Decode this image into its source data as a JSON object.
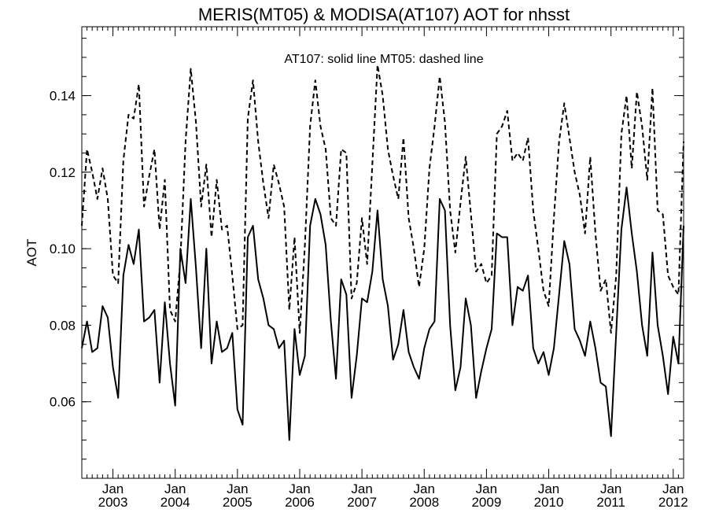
{
  "chart_data": {
    "type": "line",
    "title": "MERIS(MT05) & MODISA(AT107)  AOT for nhsst",
    "annotation": "AT107: solid line   MT05: dashed line",
    "xlabel": "",
    "ylabel": "AOT",
    "x_time_range": [
      "2002-07",
      "2012-03"
    ],
    "ylim": [
      0.04,
      0.158
    ],
    "grid": false,
    "legend": "none",
    "y_ticks": [
      0.06,
      0.08,
      0.1,
      0.12,
      0.14
    ],
    "y_tick_labels": [
      "0.06",
      "0.08",
      "0.10",
      "0.12",
      "0.14"
    ],
    "x_ticks": [
      {
        "month": "Jan",
        "year": "2003",
        "date": "2003-01"
      },
      {
        "month": "Jan",
        "year": "2004",
        "date": "2004-01"
      },
      {
        "month": "Jan",
        "year": "2005",
        "date": "2005-01"
      },
      {
        "month": "Jan",
        "year": "2006",
        "date": "2006-01"
      },
      {
        "month": "Jan",
        "year": "2007",
        "date": "2007-01"
      },
      {
        "month": "Jan",
        "year": "2008",
        "date": "2008-01"
      },
      {
        "month": "Jan",
        "year": "2009",
        "date": "2009-01"
      },
      {
        "month": "Jan",
        "year": "2010",
        "date": "2010-01"
      },
      {
        "month": "Jan",
        "year": "2011",
        "date": "2011-01"
      },
      {
        "month": "Jan",
        "year": "2012",
        "date": "2012-01"
      }
    ],
    "x": [
      "2002-07",
      "2002-08",
      "2002-09",
      "2002-10",
      "2002-11",
      "2002-12",
      "2003-01",
      "2003-02",
      "2003-03",
      "2003-04",
      "2003-05",
      "2003-06",
      "2003-07",
      "2003-08",
      "2003-09",
      "2003-10",
      "2003-11",
      "2003-12",
      "2004-01",
      "2004-02",
      "2004-03",
      "2004-04",
      "2004-05",
      "2004-06",
      "2004-07",
      "2004-08",
      "2004-09",
      "2004-10",
      "2004-11",
      "2004-12",
      "2005-01",
      "2005-02",
      "2005-03",
      "2005-04",
      "2005-05",
      "2005-06",
      "2005-07",
      "2005-08",
      "2005-09",
      "2005-10",
      "2005-11",
      "2005-12",
      "2006-01",
      "2006-02",
      "2006-03",
      "2006-04",
      "2006-05",
      "2006-06",
      "2006-07",
      "2006-08",
      "2006-09",
      "2006-10",
      "2006-11",
      "2006-12",
      "2007-01",
      "2007-02",
      "2007-03",
      "2007-04",
      "2007-05",
      "2007-06",
      "2007-07",
      "2007-08",
      "2007-09",
      "2007-10",
      "2007-11",
      "2007-12",
      "2008-01",
      "2008-02",
      "2008-03",
      "2008-04",
      "2008-05",
      "2008-06",
      "2008-07",
      "2008-08",
      "2008-09",
      "2008-10",
      "2008-11",
      "2008-12",
      "2009-01",
      "2009-02",
      "2009-03",
      "2009-04",
      "2009-05",
      "2009-06",
      "2009-07",
      "2009-08",
      "2009-09",
      "2009-10",
      "2009-11",
      "2009-12",
      "2010-01",
      "2010-02",
      "2010-03",
      "2010-04",
      "2010-05",
      "2010-06",
      "2010-07",
      "2010-08",
      "2010-09",
      "2010-10",
      "2010-11",
      "2010-12",
      "2011-01",
      "2011-02",
      "2011-03",
      "2011-04",
      "2011-05",
      "2011-06",
      "2011-07",
      "2011-08",
      "2011-09",
      "2011-10",
      "2011-11",
      "2011-12",
      "2012-01",
      "2012-02",
      "2012-03"
    ],
    "series": [
      {
        "name": "AT107",
        "style": "solid",
        "color": "#000000",
        "values": [
          0.074,
          0.081,
          0.073,
          0.074,
          0.085,
          0.082,
          0.069,
          0.061,
          0.093,
          0.101,
          0.096,
          0.105,
          0.081,
          0.082,
          0.084,
          0.065,
          0.086,
          0.07,
          0.059,
          0.1,
          0.091,
          0.113,
          0.095,
          0.074,
          0.1,
          0.07,
          0.081,
          0.073,
          0.074,
          0.078,
          0.058,
          0.054,
          0.103,
          0.106,
          0.092,
          0.087,
          0.08,
          0.079,
          0.074,
          0.076,
          0.05,
          0.079,
          0.067,
          0.072,
          0.106,
          0.113,
          0.109,
          0.101,
          0.081,
          0.066,
          0.092,
          0.088,
          0.061,
          0.072,
          0.087,
          0.086,
          0.094,
          0.11,
          0.092,
          0.085,
          0.071,
          0.075,
          0.084,
          0.073,
          0.069,
          0.066,
          0.074,
          0.079,
          0.081,
          0.113,
          0.11,
          0.08,
          0.063,
          0.069,
          0.087,
          0.08,
          0.061,
          0.068,
          0.074,
          0.079,
          0.104,
          0.103,
          0.103,
          0.08,
          0.09,
          0.089,
          0.093,
          0.074,
          0.07,
          0.073,
          0.067,
          0.074,
          0.088,
          0.102,
          0.096,
          0.079,
          0.076,
          0.072,
          0.081,
          0.074,
          0.065,
          0.064,
          0.051,
          0.078,
          0.105,
          0.116,
          0.104,
          0.094,
          0.08,
          0.072,
          0.099,
          0.08,
          0.072,
          0.062,
          0.077,
          0.07,
          0.106
        ]
      },
      {
        "name": "MT05",
        "style": "dashed",
        "color": "#000000",
        "values": [
          0.106,
          0.126,
          0.12,
          0.113,
          0.121,
          0.113,
          0.093,
          0.091,
          0.123,
          0.135,
          0.134,
          0.143,
          0.111,
          0.119,
          0.126,
          0.105,
          0.118,
          0.084,
          0.081,
          0.097,
          0.128,
          0.147,
          0.133,
          0.111,
          0.122,
          0.103,
          0.118,
          0.105,
          0.106,
          0.093,
          0.079,
          0.08,
          0.134,
          0.144,
          0.128,
          0.117,
          0.108,
          0.122,
          0.117,
          0.111,
          0.084,
          0.103,
          0.078,
          0.101,
          0.132,
          0.144,
          0.132,
          0.126,
          0.108,
          0.106,
          0.126,
          0.125,
          0.087,
          0.091,
          0.108,
          0.096,
          0.122,
          0.148,
          0.14,
          0.126,
          0.119,
          0.113,
          0.129,
          0.108,
          0.1,
          0.09,
          0.1,
          0.121,
          0.132,
          0.145,
          0.133,
          0.11,
          0.099,
          0.112,
          0.124,
          0.109,
          0.094,
          0.096,
          0.091,
          0.093,
          0.13,
          0.132,
          0.136,
          0.123,
          0.125,
          0.123,
          0.129,
          0.11,
          0.1,
          0.089,
          0.085,
          0.108,
          0.128,
          0.138,
          0.129,
          0.12,
          0.114,
          0.104,
          0.124,
          0.104,
          0.089,
          0.092,
          0.078,
          0.093,
          0.13,
          0.14,
          0.121,
          0.141,
          0.132,
          0.118,
          0.142,
          0.11,
          0.109,
          0.093,
          0.09,
          0.088,
          0.128
        ]
      }
    ]
  }
}
